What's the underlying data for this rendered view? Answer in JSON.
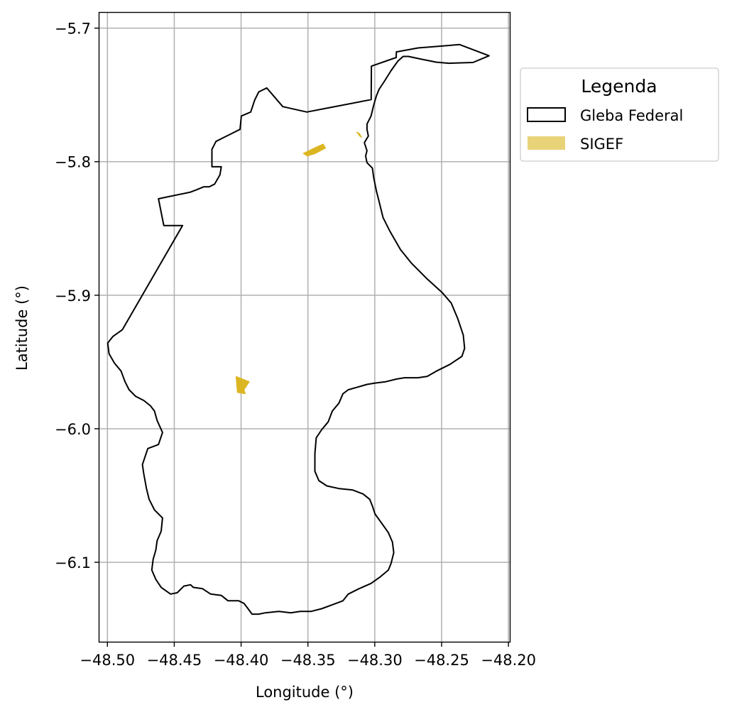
{
  "chart_data": {
    "type": "map",
    "xlabel": "Longitude (°)",
    "ylabel": "Latitude (°)",
    "xlim": [
      -48.506,
      -48.199
    ],
    "ylim": [
      -6.1595,
      -5.6885
    ],
    "x_ticks": [
      -48.5,
      -48.45,
      -48.4,
      -48.35,
      -48.3,
      -48.25,
      -48.2
    ],
    "x_tick_labels": [
      "−48.50",
      "−48.45",
      "−48.40",
      "−48.35",
      "−48.30",
      "−48.25",
      "−48.20"
    ],
    "y_ticks": [
      -5.7,
      -5.8,
      -5.9,
      -6.0,
      -6.1
    ],
    "y_tick_labels": [
      "−5.7",
      "−5.8",
      "−5.9",
      "−6.0",
      "−6.1"
    ],
    "grid": true,
    "legend": {
      "title": "Legenda",
      "placement": "outside-top-right",
      "entries": [
        {
          "label": "Gleba Federal",
          "style": "outline",
          "color": "#000000"
        },
        {
          "label": "SIGEF",
          "style": "fill",
          "color": "#e9d379"
        }
      ]
    },
    "layers": [
      {
        "name": "Gleba Federal",
        "type": "polygon",
        "stroke": "#000000",
        "fill": "none",
        "coordinates": [
          [
            -48.3027,
            -5.7535
          ],
          [
            -48.3025,
            -5.7285
          ],
          [
            -48.284,
            -5.722
          ],
          [
            -48.2838,
            -5.7178
          ],
          [
            -48.2675,
            -5.7148
          ],
          [
            -48.2365,
            -5.7123
          ],
          [
            -48.2145,
            -5.7207
          ],
          [
            -48.2265,
            -5.7257
          ],
          [
            -48.2445,
            -5.7263
          ],
          [
            -48.2538,
            -5.7255
          ],
          [
            -48.2648,
            -5.7233
          ],
          [
            -48.2748,
            -5.7212
          ],
          [
            -48.2788,
            -5.7212
          ],
          [
            -48.2828,
            -5.7248
          ],
          [
            -48.2878,
            -5.7318
          ],
          [
            -48.2928,
            -5.7398
          ],
          [
            -48.2968,
            -5.7458
          ],
          [
            -48.2988,
            -5.7508
          ],
          [
            -48.3008,
            -5.7578
          ],
          [
            -48.3028,
            -5.7658
          ],
          [
            -48.3058,
            -5.7718
          ],
          [
            -48.3058,
            -5.7758
          ],
          [
            -48.3048,
            -5.7808
          ],
          [
            -48.3078,
            -5.7858
          ],
          [
            -48.3058,
            -5.7918
          ],
          [
            -48.3068,
            -5.7958
          ],
          [
            -48.3058,
            -5.8008
          ],
          [
            -48.3018,
            -5.8048
          ],
          [
            -48.3008,
            -5.8118
          ],
          [
            -48.2988,
            -5.8218
          ],
          [
            -48.2968,
            -5.8298
          ],
          [
            -48.2938,
            -5.8418
          ],
          [
            -48.2888,
            -5.8518
          ],
          [
            -48.2808,
            -5.8658
          ],
          [
            -48.2728,
            -5.8758
          ],
          [
            -48.2608,
            -5.8878
          ],
          [
            -48.2498,
            -5.8978
          ],
          [
            -48.2428,
            -5.9058
          ],
          [
            -48.2378,
            -5.9178
          ],
          [
            -48.2338,
            -5.9298
          ],
          [
            -48.2328,
            -5.9398
          ],
          [
            -48.2348,
            -5.9458
          ],
          [
            -48.2438,
            -5.9518
          ],
          [
            -48.2538,
            -5.9568
          ],
          [
            -48.2608,
            -5.9608
          ],
          [
            -48.2678,
            -5.9618
          ],
          [
            -48.2778,
            -5.9618
          ],
          [
            -48.2838,
            -5.9628
          ],
          [
            -48.2918,
            -5.9648
          ],
          [
            -48.2998,
            -5.9658
          ],
          [
            -48.3058,
            -5.9668
          ],
          [
            -48.3128,
            -5.9688
          ],
          [
            -48.3198,
            -5.9708
          ],
          [
            -48.3238,
            -5.9738
          ],
          [
            -48.3268,
            -5.9808
          ],
          [
            -48.3318,
            -5.9868
          ],
          [
            -48.3348,
            -5.9948
          ],
          [
            -48.3398,
            -6.0008
          ],
          [
            -48.3438,
            -6.0068
          ],
          [
            -48.3448,
            -6.0188
          ],
          [
            -48.3448,
            -6.0318
          ],
          [
            -48.3418,
            -6.0388
          ],
          [
            -48.3358,
            -6.0428
          ],
          [
            -48.3268,
            -6.0448
          ],
          [
            -48.3168,
            -6.0458
          ],
          [
            -48.3088,
            -6.0488
          ],
          [
            -48.3038,
            -6.0528
          ],
          [
            -48.3018,
            -6.0578
          ],
          [
            -48.2998,
            -6.0638
          ],
          [
            -48.2948,
            -6.0708
          ],
          [
            -48.2898,
            -6.0778
          ],
          [
            -48.2868,
            -6.0848
          ],
          [
            -48.2858,
            -6.0928
          ],
          [
            -48.2878,
            -6.1008
          ],
          [
            -48.2898,
            -6.1058
          ],
          [
            -48.2958,
            -6.1108
          ],
          [
            -48.3028,
            -6.1158
          ],
          [
            -48.3118,
            -6.1198
          ],
          [
            -48.3198,
            -6.1238
          ],
          [
            -48.3238,
            -6.1288
          ],
          [
            -48.3318,
            -6.1318
          ],
          [
            -48.3398,
            -6.1348
          ],
          [
            -48.3478,
            -6.1368
          ],
          [
            -48.3558,
            -6.1368
          ],
          [
            -48.3628,
            -6.1378
          ],
          [
            -48.3718,
            -6.1368
          ],
          [
            -48.3818,
            -6.1378
          ],
          [
            -48.3868,
            -6.1388
          ],
          [
            -48.3918,
            -6.1388
          ],
          [
            -48.3948,
            -6.1348
          ],
          [
            -48.3978,
            -6.1308
          ],
          [
            -48.4018,
            -6.1288
          ],
          [
            -48.4098,
            -6.1288
          ],
          [
            -48.4148,
            -6.1248
          ],
          [
            -48.4228,
            -6.1238
          ],
          [
            -48.4288,
            -6.1198
          ],
          [
            -48.4358,
            -6.1188
          ],
          [
            -48.4378,
            -6.1168
          ],
          [
            -48.4428,
            -6.1178
          ],
          [
            -48.4478,
            -6.1228
          ],
          [
            -48.4528,
            -6.1238
          ],
          [
            -48.4598,
            -6.1188
          ],
          [
            -48.4638,
            -6.1128
          ],
          [
            -48.4668,
            -6.1058
          ],
          [
            -48.4658,
            -6.0978
          ],
          [
            -48.4638,
            -6.0908
          ],
          [
            -48.4628,
            -6.0838
          ],
          [
            -48.4598,
            -6.0768
          ],
          [
            -48.4588,
            -6.0668
          ],
          [
            -48.4648,
            -6.0608
          ],
          [
            -48.4688,
            -6.0528
          ],
          [
            -48.4708,
            -6.0448
          ],
          [
            -48.4728,
            -6.0338
          ],
          [
            -48.4738,
            -6.0268
          ],
          [
            -48.4698,
            -6.0148
          ],
          [
            -48.4618,
            -6.0118
          ],
          [
            -48.4588,
            -6.0028
          ],
          [
            -48.4628,
            -5.9938
          ],
          [
            -48.4648,
            -5.9868
          ],
          [
            -48.4678,
            -5.9828
          ],
          [
            -48.4728,
            -5.9788
          ],
          [
            -48.4788,
            -5.9758
          ],
          [
            -48.4838,
            -5.9708
          ],
          [
            -48.4868,
            -5.9648
          ],
          [
            -48.4898,
            -5.9568
          ],
          [
            -48.4948,
            -5.9508
          ],
          [
            -48.4988,
            -5.9438
          ],
          [
            -48.4998,
            -5.9358
          ],
          [
            -48.4958,
            -5.9308
          ],
          [
            -48.4888,
            -5.9258
          ],
          [
            -48.4438,
            -5.8478
          ],
          [
            -48.4578,
            -5.8478
          ],
          [
            -48.4618,
            -5.8278
          ],
          [
            -48.4378,
            -5.8228
          ],
          [
            -48.4328,
            -5.8208
          ],
          [
            -48.4278,
            -5.8188
          ],
          [
            -48.4238,
            -5.8188
          ],
          [
            -48.4198,
            -5.8168
          ],
          [
            -48.4158,
            -5.8098
          ],
          [
            -48.4148,
            -5.8038
          ],
          [
            -48.4218,
            -5.8038
          ],
          [
            -48.4218,
            -5.7908
          ],
          [
            -48.4188,
            -5.7848
          ],
          [
            -48.4128,
            -5.7818
          ],
          [
            -48.4068,
            -5.7788
          ],
          [
            -48.4008,
            -5.7758
          ],
          [
            -48.3998,
            -5.7658
          ],
          [
            -48.3928,
            -5.7628
          ],
          [
            -48.3898,
            -5.7538
          ],
          [
            -48.3868,
            -5.7478
          ],
          [
            -48.3808,
            -5.7448
          ],
          [
            -48.3688,
            -5.7588
          ],
          [
            -48.3508,
            -5.7628
          ],
          [
            -48.3338,
            -5.7595
          ],
          [
            -48.3027,
            -5.7535
          ]
        ]
      },
      {
        "name": "SIGEF",
        "type": "polygon",
        "fill": "#dcb622",
        "coordinates": [
          [
            -48.3535,
            -5.7938
          ],
          [
            -48.3432,
            -5.7888
          ],
          [
            -48.3386,
            -5.7868
          ],
          [
            -48.3368,
            -5.7898
          ],
          [
            -48.3442,
            -5.7938
          ],
          [
            -48.3505,
            -5.7958
          ]
        ]
      },
      {
        "name": "SIGEF",
        "type": "polygon",
        "fill": "#dcb622",
        "coordinates": [
          [
            -48.3135,
            -5.7778
          ],
          [
            -48.3115,
            -5.7788
          ],
          [
            -48.3098,
            -5.7818
          ],
          [
            -48.3112,
            -5.781
          ]
        ]
      },
      {
        "name": "SIGEF",
        "type": "polygon",
        "fill": "#dcb622",
        "coordinates": [
          [
            -48.4038,
            -5.9608
          ],
          [
            -48.3938,
            -5.9648
          ],
          [
            -48.3978,
            -5.9708
          ],
          [
            -48.3968,
            -5.9738
          ],
          [
            -48.4028,
            -5.9728
          ]
        ]
      }
    ]
  }
}
